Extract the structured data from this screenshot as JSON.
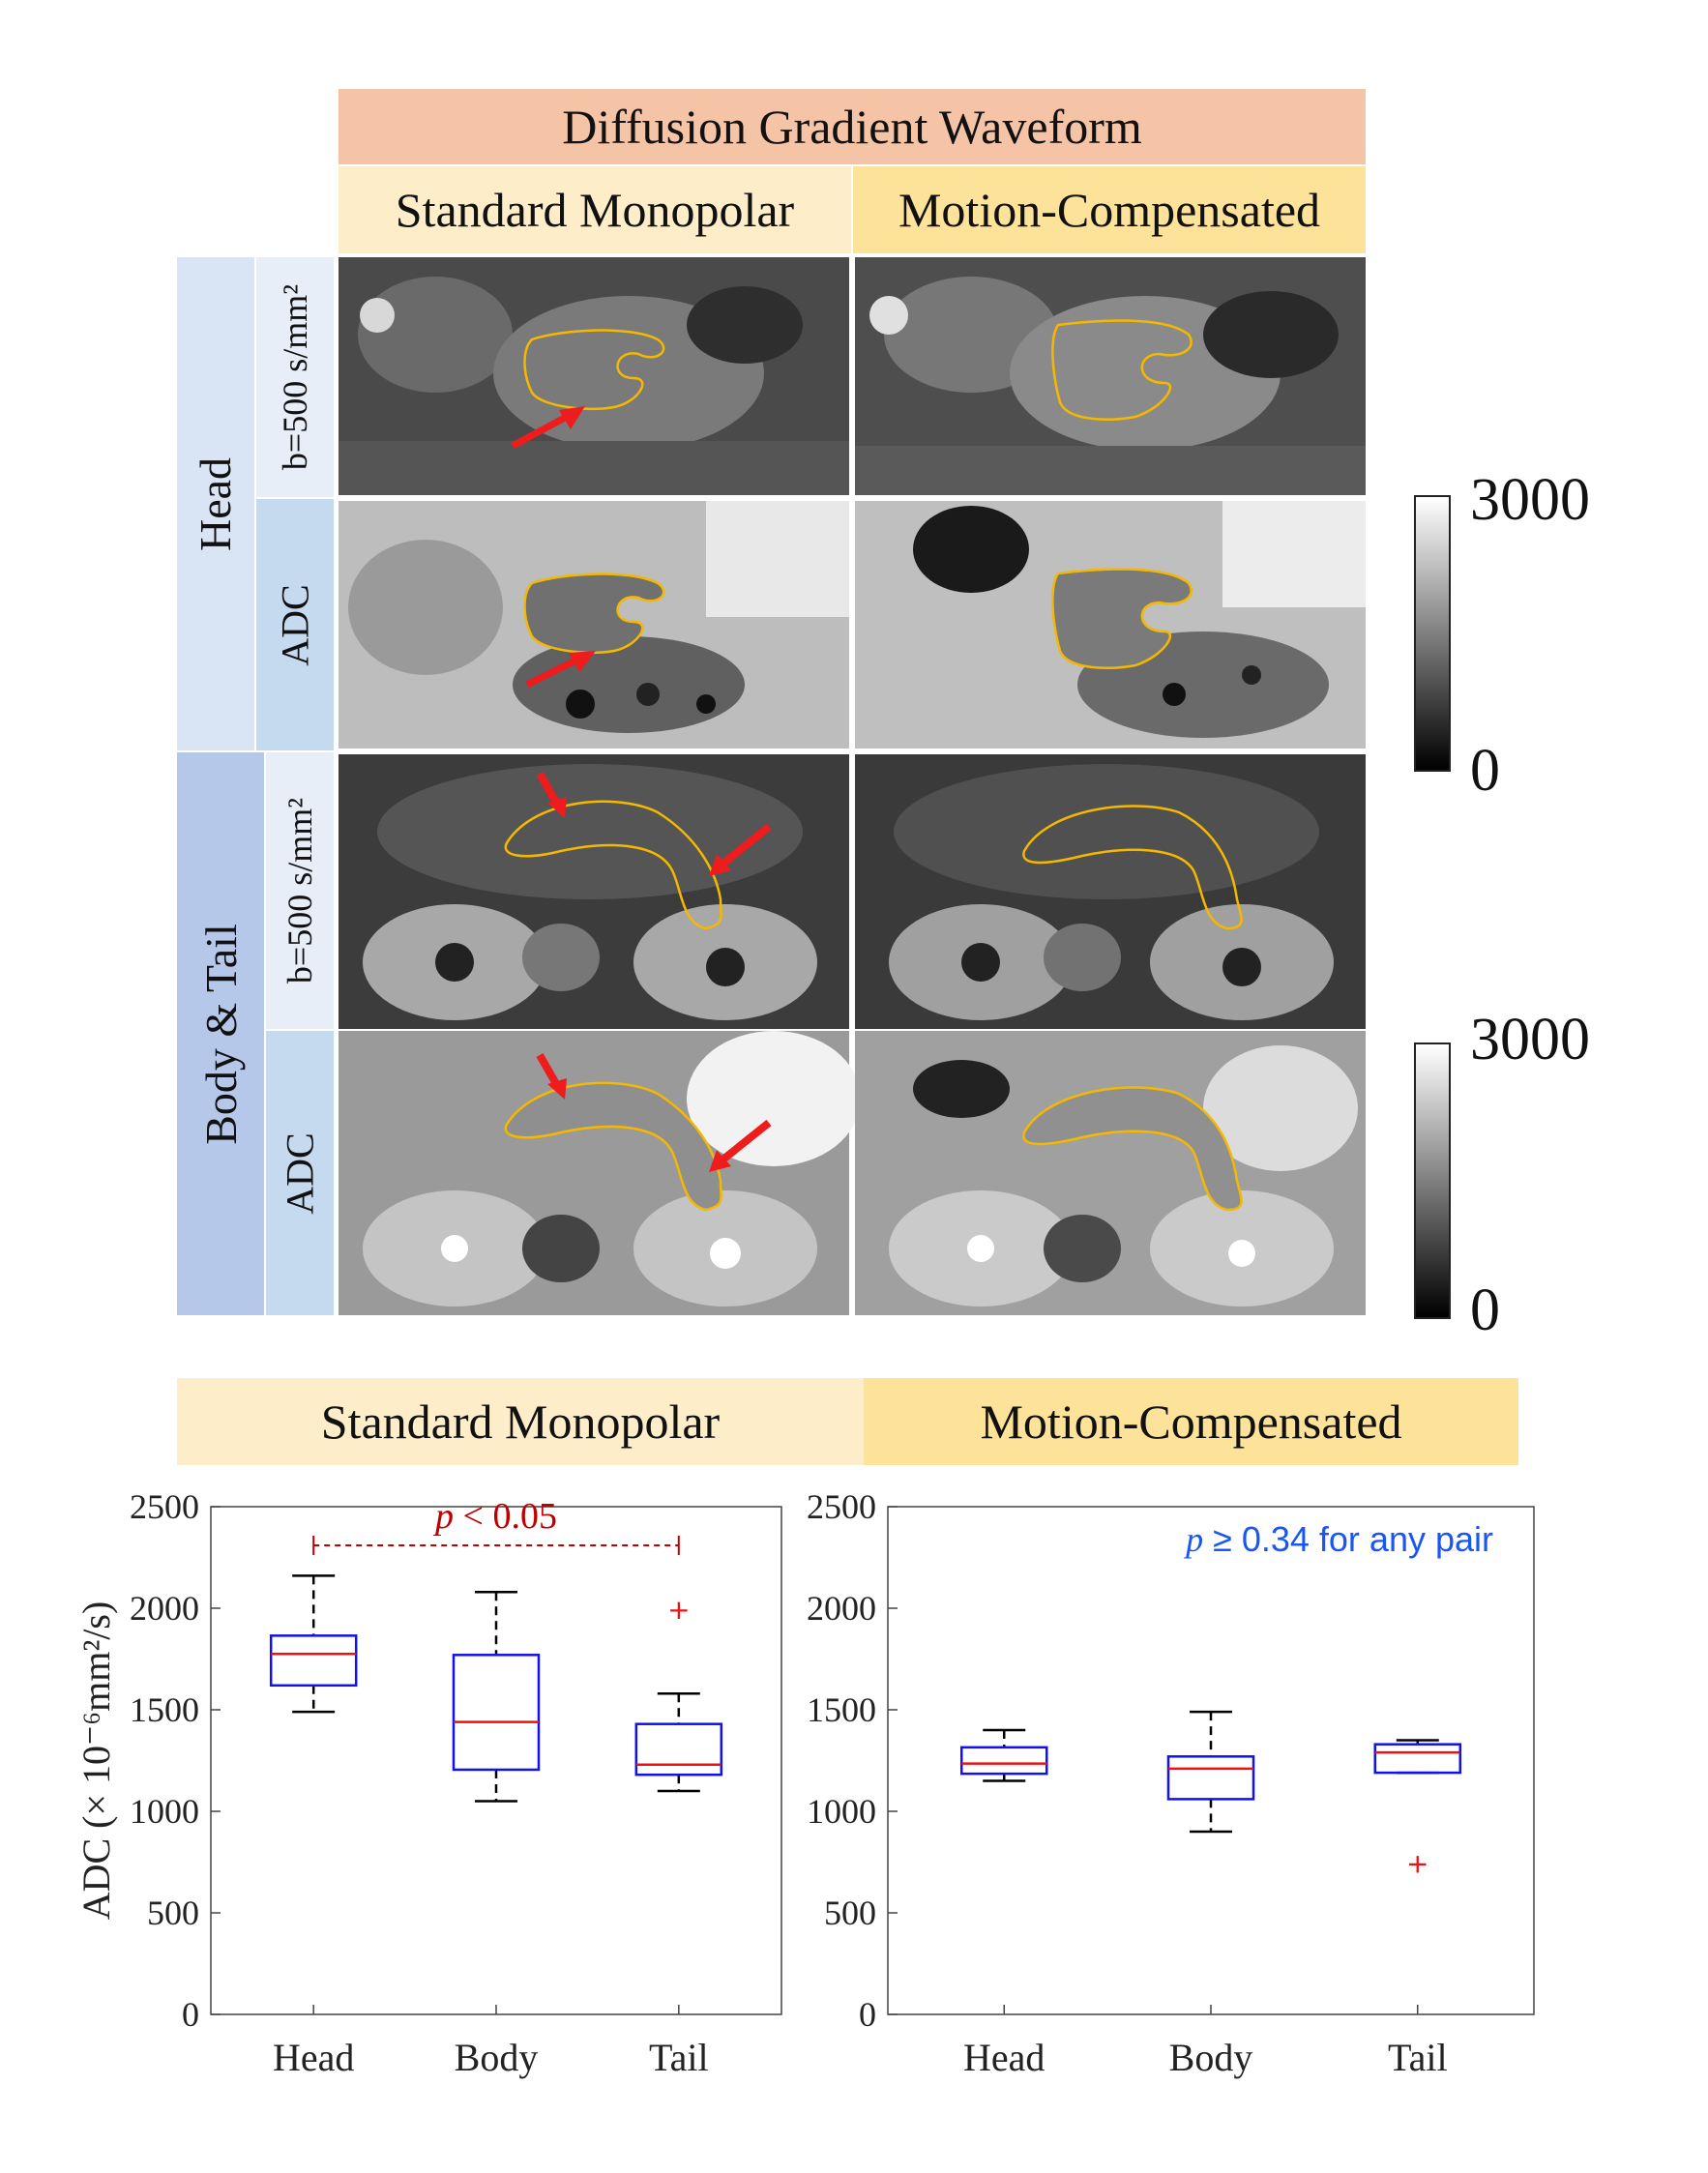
{
  "figure": {
    "header_top": "Diffusion Gradient Waveform",
    "col_standard": "Standard Monopolar",
    "col_motion": "Motion-Compensated",
    "region_head": "Head",
    "region_bodytail": "Body & Tail",
    "row_b500_a": "b=500 s/mm²",
    "row_adc_a": "ADC",
    "row_b500_b": "b=500 s/mm²",
    "row_adc_b": "ADC",
    "colorbar_top": {
      "max": "3000",
      "min": "0"
    },
    "colorbar_bottom": {
      "max": "3000",
      "min": "0"
    },
    "colors": {
      "salmon": "#f5c4a6",
      "cream": "#fdedc8",
      "yellow": "#fde29a",
      "head_blue": "#d9e4f5",
      "body_blue": "#b6c8e9",
      "b500_cell": "#e8eef8",
      "adc_cell": "#c5d9ef",
      "roi": "#f5b800",
      "arrow": "#ee1c1c",
      "box": "#1111ee",
      "median": "#ee1111",
      "p_red": "#c00000",
      "p_blue": "#1a56f0"
    }
  },
  "bottom_headers": {
    "left": "Standard Monopolar",
    "right": "Motion-Compensated"
  },
  "chart_data": [
    {
      "type": "box",
      "title": "Standard Monopolar",
      "ylabel": "ADC (× 10⁻⁶mm²/s)",
      "ylim": [
        0,
        2500
      ],
      "yticks": [
        "0",
        "500",
        "1000",
        "1500",
        "2000",
        "2500"
      ],
      "categories": [
        "Head",
        "Body",
        "Tail"
      ],
      "boxes": [
        {
          "min": 1490,
          "q1": 1620,
          "median": 1775,
          "q3": 1865,
          "max": 2160,
          "outliers": []
        },
        {
          "min": 1050,
          "q1": 1205,
          "median": 1440,
          "q3": 1770,
          "max": 2080,
          "outliers": []
        },
        {
          "min": 1100,
          "q1": 1180,
          "median": 1230,
          "q3": 1430,
          "max": 1580,
          "outliers": [
            1990
          ]
        }
      ],
      "annotation": {
        "text_p": "p",
        "text_rest": " < 0.05",
        "from": "Head",
        "to": "Tail"
      }
    },
    {
      "type": "box",
      "title": "Motion-Compensated",
      "ylim": [
        0,
        2500
      ],
      "yticks": [
        "0",
        "500",
        "1000",
        "1500",
        "2000",
        "2500"
      ],
      "categories": [
        "Head",
        "Body",
        "Tail"
      ],
      "boxes": [
        {
          "min": 1150,
          "q1": 1185,
          "median": 1235,
          "q3": 1315,
          "max": 1400,
          "outliers": []
        },
        {
          "min": 900,
          "q1": 1060,
          "median": 1210,
          "q3": 1270,
          "max": 1490,
          "outliers": []
        },
        {
          "min": 1190,
          "q1": 1190,
          "median": 1290,
          "q3": 1330,
          "max": 1350,
          "outliers": [
            740
          ]
        }
      ],
      "annotation": {
        "text_p": "p",
        "text_rest": " ≥ 0.34 for any pair"
      }
    }
  ]
}
